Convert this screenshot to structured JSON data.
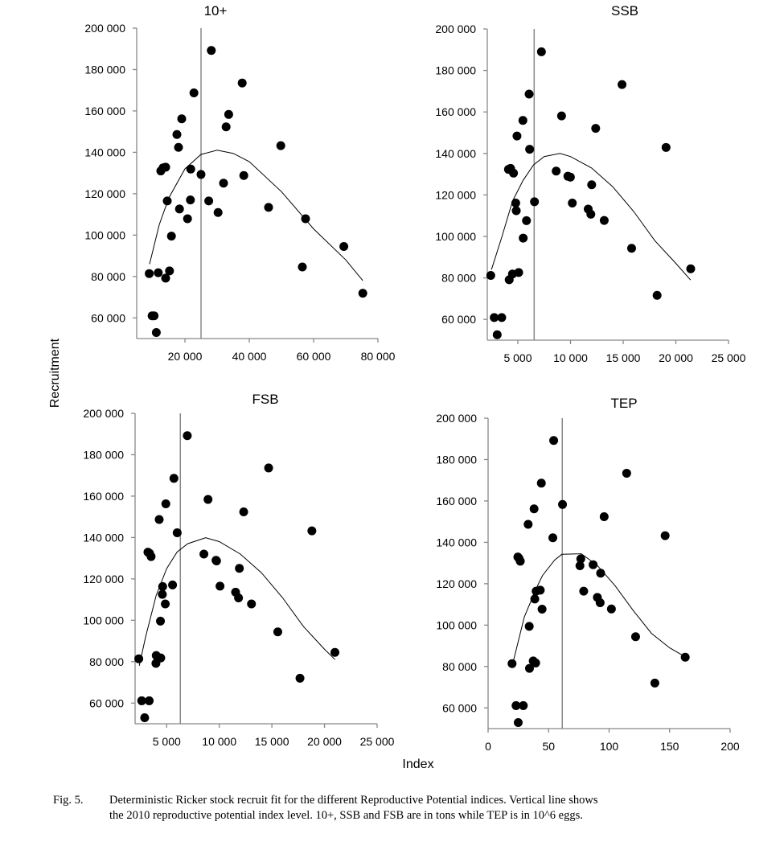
{
  "figure": {
    "ylabel": "Recruitment",
    "xlabel": "Index",
    "caption_label": "Fig. 5.",
    "caption_line1": "Deterministic Ricker stock recruit fit for the different Reproductive Potential indices. Vertical line shows",
    "caption_line2": "the 2010 reproductive potential index level. 10+, SSB and FSB are in tons while TEP is in 10^6 eggs."
  },
  "chart_data": [
    {
      "type": "scatter",
      "title": "10+",
      "xlabel": "Index",
      "ylabel": "Recruitment",
      "xlim": [
        5000,
        80000
      ],
      "ylim": [
        50000,
        200000
      ],
      "xticks": [
        20000,
        40000,
        60000,
        80000
      ],
      "xtick_labels": [
        "20 000",
        "40 000",
        "60 000",
        "80 000"
      ],
      "yticks": [
        60000,
        80000,
        100000,
        120000,
        140000,
        160000,
        180000,
        200000
      ],
      "ytick_labels": [
        "60 000",
        "80 000",
        "100 000",
        "120 000",
        "140 000",
        "160 000",
        "180 000",
        "200 000"
      ],
      "vline_2010": 25000,
      "points": [
        [
          8900,
          81400
        ],
        [
          11700,
          81800
        ],
        [
          14000,
          79200
        ],
        [
          15200,
          82700
        ],
        [
          9800,
          61000
        ],
        [
          10400,
          61000
        ],
        [
          11100,
          52900
        ],
        [
          15800,
          99500
        ],
        [
          14500,
          116500
        ],
        [
          12500,
          131000
        ],
        [
          13200,
          132500
        ],
        [
          14000,
          132800
        ],
        [
          17500,
          148600
        ],
        [
          18000,
          142400
        ],
        [
          19000,
          156200
        ],
        [
          18300,
          112600
        ],
        [
          20800,
          107900
        ],
        [
          21700,
          117000
        ],
        [
          21800,
          131900
        ],
        [
          22800,
          168700
        ],
        [
          25000,
          129300
        ],
        [
          28200,
          189200
        ],
        [
          27400,
          116500
        ],
        [
          30300,
          110900
        ],
        [
          32000,
          125100
        ],
        [
          32800,
          152300
        ],
        [
          33600,
          158300
        ],
        [
          37800,
          173500
        ],
        [
          38300,
          128800
        ],
        [
          46000,
          113400
        ],
        [
          49800,
          143200
        ],
        [
          56500,
          84600
        ],
        [
          57500,
          107900
        ],
        [
          69400,
          94500
        ],
        [
          75300,
          71900
        ]
      ],
      "fit": [
        [
          9000,
          86000
        ],
        [
          12000,
          105000
        ],
        [
          15000,
          118000
        ],
        [
          20000,
          132000
        ],
        [
          25000,
          139000
        ],
        [
          30000,
          141000
        ],
        [
          35000,
          139500
        ],
        [
          40000,
          135500
        ],
        [
          50000,
          121000
        ],
        [
          60000,
          103000
        ],
        [
          70000,
          88000
        ],
        [
          75300,
          78000
        ]
      ]
    },
    {
      "type": "scatter",
      "title": "SSB",
      "xlabel": "Index",
      "ylabel": "Recruitment",
      "xlim": [
        2100,
        25000
      ],
      "ylim": [
        50000,
        200000
      ],
      "xticks": [
        5000,
        10000,
        15000,
        20000,
        25000
      ],
      "xtick_labels": [
        "5 000",
        "10 000",
        "15 000",
        "20 000",
        "25 000"
      ],
      "yticks": [
        60000,
        80000,
        100000,
        120000,
        140000,
        160000,
        180000,
        200000
      ],
      "ytick_labels": [
        "60 000",
        "80 000",
        "100 000",
        "120 000",
        "140 000",
        "160 000",
        "180 000",
        "200 000"
      ],
      "vline_2010": 6550,
      "points": [
        [
          2430,
          81200
        ],
        [
          2760,
          60900
        ],
        [
          3470,
          60900
        ],
        [
          3040,
          52600
        ],
        [
          4180,
          79100
        ],
        [
          4490,
          81900
        ],
        [
          5080,
          82600
        ],
        [
          4110,
          132300
        ],
        [
          4310,
          132800
        ],
        [
          4590,
          130500
        ],
        [
          4800,
          116100
        ],
        [
          4850,
          112400
        ],
        [
          4920,
          148400
        ],
        [
          5480,
          155900
        ],
        [
          5510,
          99200
        ],
        [
          5820,
          107600
        ],
        [
          6070,
          168600
        ],
        [
          6120,
          142000
        ],
        [
          6580,
          116700
        ],
        [
          7240,
          189000
        ],
        [
          8640,
          131500
        ],
        [
          9150,
          158100
        ],
        [
          9750,
          129000
        ],
        [
          9990,
          128600
        ],
        [
          10170,
          116100
        ],
        [
          11680,
          113200
        ],
        [
          11930,
          110700
        ],
        [
          12010,
          124900
        ],
        [
          12390,
          152100
        ],
        [
          13200,
          107700
        ],
        [
          14890,
          173200
        ],
        [
          15800,
          94300
        ],
        [
          18220,
          71600
        ],
        [
          19070,
          142900
        ],
        [
          21410,
          84400
        ]
      ],
      "fit": [
        [
          2500,
          84000
        ],
        [
          3500,
          100000
        ],
        [
          4500,
          117000
        ],
        [
          5500,
          127000
        ],
        [
          6500,
          134500
        ],
        [
          7500,
          138500
        ],
        [
          9000,
          140000
        ],
        [
          10000,
          138500
        ],
        [
          12000,
          133000
        ],
        [
          14000,
          124000
        ],
        [
          16000,
          112000
        ],
        [
          18000,
          98000
        ],
        [
          20000,
          87000
        ],
        [
          21400,
          79000
        ]
      ]
    },
    {
      "type": "scatter",
      "title": "FSB",
      "xlabel": "Index",
      "ylabel": "Recruitment",
      "xlim": [
        2000,
        25000
      ],
      "ylim": [
        50000,
        200000
      ],
      "xticks": [
        5000,
        10000,
        15000,
        20000,
        25000
      ],
      "xtick_labels": [
        "5 000",
        "10 000",
        "15 000",
        "20 000",
        "25 000"
      ],
      "yticks": [
        60000,
        80000,
        100000,
        120000,
        140000,
        160000,
        180000,
        200000
      ],
      "ytick_labels": [
        "60 000",
        "80 000",
        "100 000",
        "120 000",
        "140 000",
        "160 000",
        "180 000",
        "200 000"
      ],
      "vline_2010": 6300,
      "points": [
        [
          2350,
          81400
        ],
        [
          2630,
          61100
        ],
        [
          3340,
          61100
        ],
        [
          2910,
          52900
        ],
        [
          3980,
          79200
        ],
        [
          4010,
          83000
        ],
        [
          4440,
          81800
        ],
        [
          3220,
          132900
        ],
        [
          3370,
          132400
        ],
        [
          3520,
          130800
        ],
        [
          4410,
          99600
        ],
        [
          4620,
          116300
        ],
        [
          4590,
          112500
        ],
        [
          4870,
          107900
        ],
        [
          4290,
          148700
        ],
        [
          4920,
          156300
        ],
        [
          5560,
          117100
        ],
        [
          5690,
          168600
        ],
        [
          6000,
          142300
        ],
        [
          6960,
          189200
        ],
        [
          8540,
          132000
        ],
        [
          8930,
          158400
        ],
        [
          9690,
          129000
        ],
        [
          9740,
          128700
        ],
        [
          10070,
          116500
        ],
        [
          11550,
          113600
        ],
        [
          11830,
          110800
        ],
        [
          11910,
          125100
        ],
        [
          12320,
          152400
        ],
        [
          13060,
          107900
        ],
        [
          14690,
          173600
        ],
        [
          15560,
          94400
        ],
        [
          17670,
          72000
        ],
        [
          18800,
          143200
        ],
        [
          20990,
          84500
        ]
      ],
      "fit": [
        [
          2400,
          78000
        ],
        [
          3000,
          92000
        ],
        [
          4000,
          112000
        ],
        [
          5000,
          125000
        ],
        [
          6000,
          133000
        ],
        [
          7000,
          137000
        ],
        [
          8700,
          139900
        ],
        [
          10000,
          138000
        ],
        [
          12000,
          132000
        ],
        [
          14000,
          123000
        ],
        [
          16000,
          111000
        ],
        [
          18000,
          97000
        ],
        [
          20000,
          86000
        ],
        [
          21000,
          81000
        ]
      ]
    },
    {
      "type": "scatter",
      "title": "TEP",
      "xlabel": "Index",
      "ylabel": "Recruitment",
      "xlim": [
        0,
        200
      ],
      "ylim": [
        50000,
        200000
      ],
      "xticks": [
        0,
        50,
        100,
        150,
        200
      ],
      "xtick_labels": [
        "0",
        "50",
        "100",
        "150",
        "200"
      ],
      "yticks": [
        60000,
        80000,
        100000,
        120000,
        140000,
        160000,
        180000,
        200000
      ],
      "ytick_labels": [
        "60 000",
        "80 000",
        "100 000",
        "120 000",
        "140 000",
        "160 000",
        "180 000",
        "200 000"
      ],
      "vline_2010": 61.3,
      "points": [
        [
          19.8,
          81400
        ],
        [
          23.1,
          61100
        ],
        [
          29.1,
          61100
        ],
        [
          24.9,
          52900
        ],
        [
          34.2,
          79100
        ],
        [
          37.3,
          82700
        ],
        [
          39.3,
          81700
        ],
        [
          24.6,
          132900
        ],
        [
          25.5,
          132300
        ],
        [
          26.6,
          130900
        ],
        [
          34.0,
          99400
        ],
        [
          39.7,
          116400
        ],
        [
          43.1,
          116900
        ],
        [
          38.6,
          112600
        ],
        [
          44.6,
          107700
        ],
        [
          33.1,
          148700
        ],
        [
          38.0,
          156200
        ],
        [
          44.0,
          168600
        ],
        [
          53.5,
          142200
        ],
        [
          54.2,
          189200
        ],
        [
          61.5,
          158300
        ],
        [
          76.6,
          132000
        ],
        [
          75.9,
          128700
        ],
        [
          86.8,
          129200
        ],
        [
          93.0,
          125100
        ],
        [
          79.0,
          116400
        ],
        [
          90.3,
          113400
        ],
        [
          92.6,
          110800
        ],
        [
          101.9,
          107800
        ],
        [
          95.9,
          152400
        ],
        [
          114.5,
          173400
        ],
        [
          121.9,
          94400
        ],
        [
          137.8,
          72000
        ],
        [
          146.3,
          143200
        ],
        [
          162.9,
          84500
        ]
      ],
      "fit": [
        [
          20.6,
          82000
        ],
        [
          30,
          104000
        ],
        [
          40,
          118000
        ],
        [
          45,
          124000
        ],
        [
          55,
          131500
        ],
        [
          61,
          134200
        ],
        [
          77,
          134500
        ],
        [
          90,
          129000
        ],
        [
          105,
          119000
        ],
        [
          120,
          107000
        ],
        [
          135,
          96000
        ],
        [
          150,
          89000
        ],
        [
          162,
          85000
        ]
      ]
    }
  ]
}
